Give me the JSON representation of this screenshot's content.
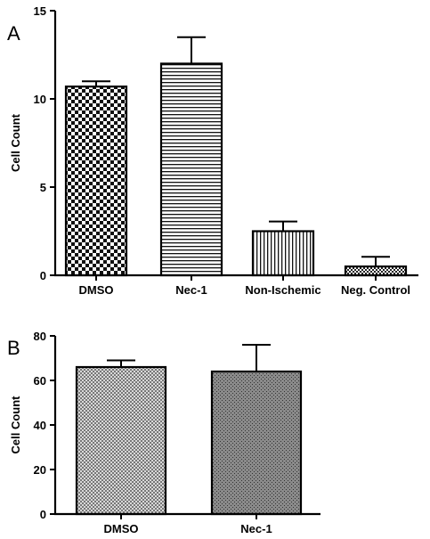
{
  "chart_data": [
    {
      "panel": "A",
      "type": "bar",
      "ylabel": "Cell Count",
      "xlabel": "",
      "ylim": [
        0,
        15
      ],
      "yticks": [
        0,
        5,
        10,
        15
      ],
      "categories": [
        "DMSO",
        "Nec-1",
        "Non-Ischemic",
        "Neg. Control"
      ],
      "values": [
        10.7,
        12.0,
        2.5,
        0.5
      ],
      "errors": [
        0.3,
        1.5,
        0.55,
        0.55
      ],
      "fills": [
        "checker",
        "hlines",
        "vlines",
        "smallchecker"
      ],
      "grid": false,
      "legend": "none"
    },
    {
      "panel": "B",
      "type": "bar",
      "ylabel": "Cell Count",
      "xlabel": "",
      "ylim": [
        0,
        80
      ],
      "yticks": [
        0,
        20,
        40,
        60,
        80
      ],
      "categories": [
        "DMSO",
        "Nec-1"
      ],
      "values": [
        66,
        64
      ],
      "errors": [
        3,
        12
      ],
      "fills": [
        "crosshatch",
        "dots"
      ],
      "grid": false,
      "legend": "none"
    }
  ]
}
